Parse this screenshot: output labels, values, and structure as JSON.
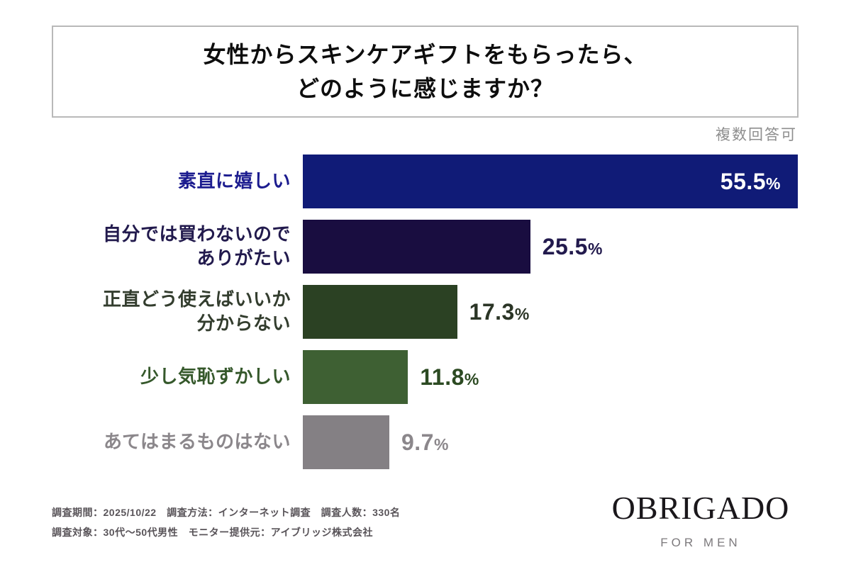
{
  "title": {
    "text": "女性からスキンケアギフトをもらったら、\nどのように感じますか？"
  },
  "note": "複数回答可",
  "chart_data": {
    "type": "bar",
    "orientation": "horizontal",
    "title": "女性からスキンケアギフトをもらったら、どのように感じますか？",
    "annotation": "複数回答可",
    "categories": [
      "素直に嬉しい",
      "自分では買わないので\nありがたい",
      "正直どう使えばいいか\n分からない",
      "少し気恥ずかしい",
      "あてはまるものはない"
    ],
    "values": [
      55.5,
      25.5,
      17.3,
      11.8,
      9.7
    ],
    "value_labels": [
      "55.5",
      "25.5",
      "17.3",
      "11.8",
      "9.7"
    ],
    "unit": "%",
    "xlim": [
      0,
      55.5
    ],
    "grid": false,
    "legend": "none",
    "bar_colors": [
      "#101b77",
      "#190d40",
      "#2b4123",
      "#3e6033",
      "#848084"
    ],
    "label_colors": [
      "#1c1c8f",
      "#221a4d",
      "#333d2e",
      "#35582b",
      "#8b878b"
    ],
    "value_label_colors": [
      "#ffffff",
      "#221a4d",
      "#2b3526",
      "#2c4a22",
      "#8b878b"
    ],
    "value_label_position": [
      "inside",
      "outside",
      "outside",
      "outside",
      "outside"
    ]
  },
  "footer": {
    "text": "調査期間：2025/10/22　調査方法：インターネット調査　調査人数：330名\n調査対象：30代〜50代男性　モニター提供元：アイブリッジ株式会社"
  },
  "brand": {
    "name": "OBRIGADO",
    "tagline": "FOR MEN"
  }
}
